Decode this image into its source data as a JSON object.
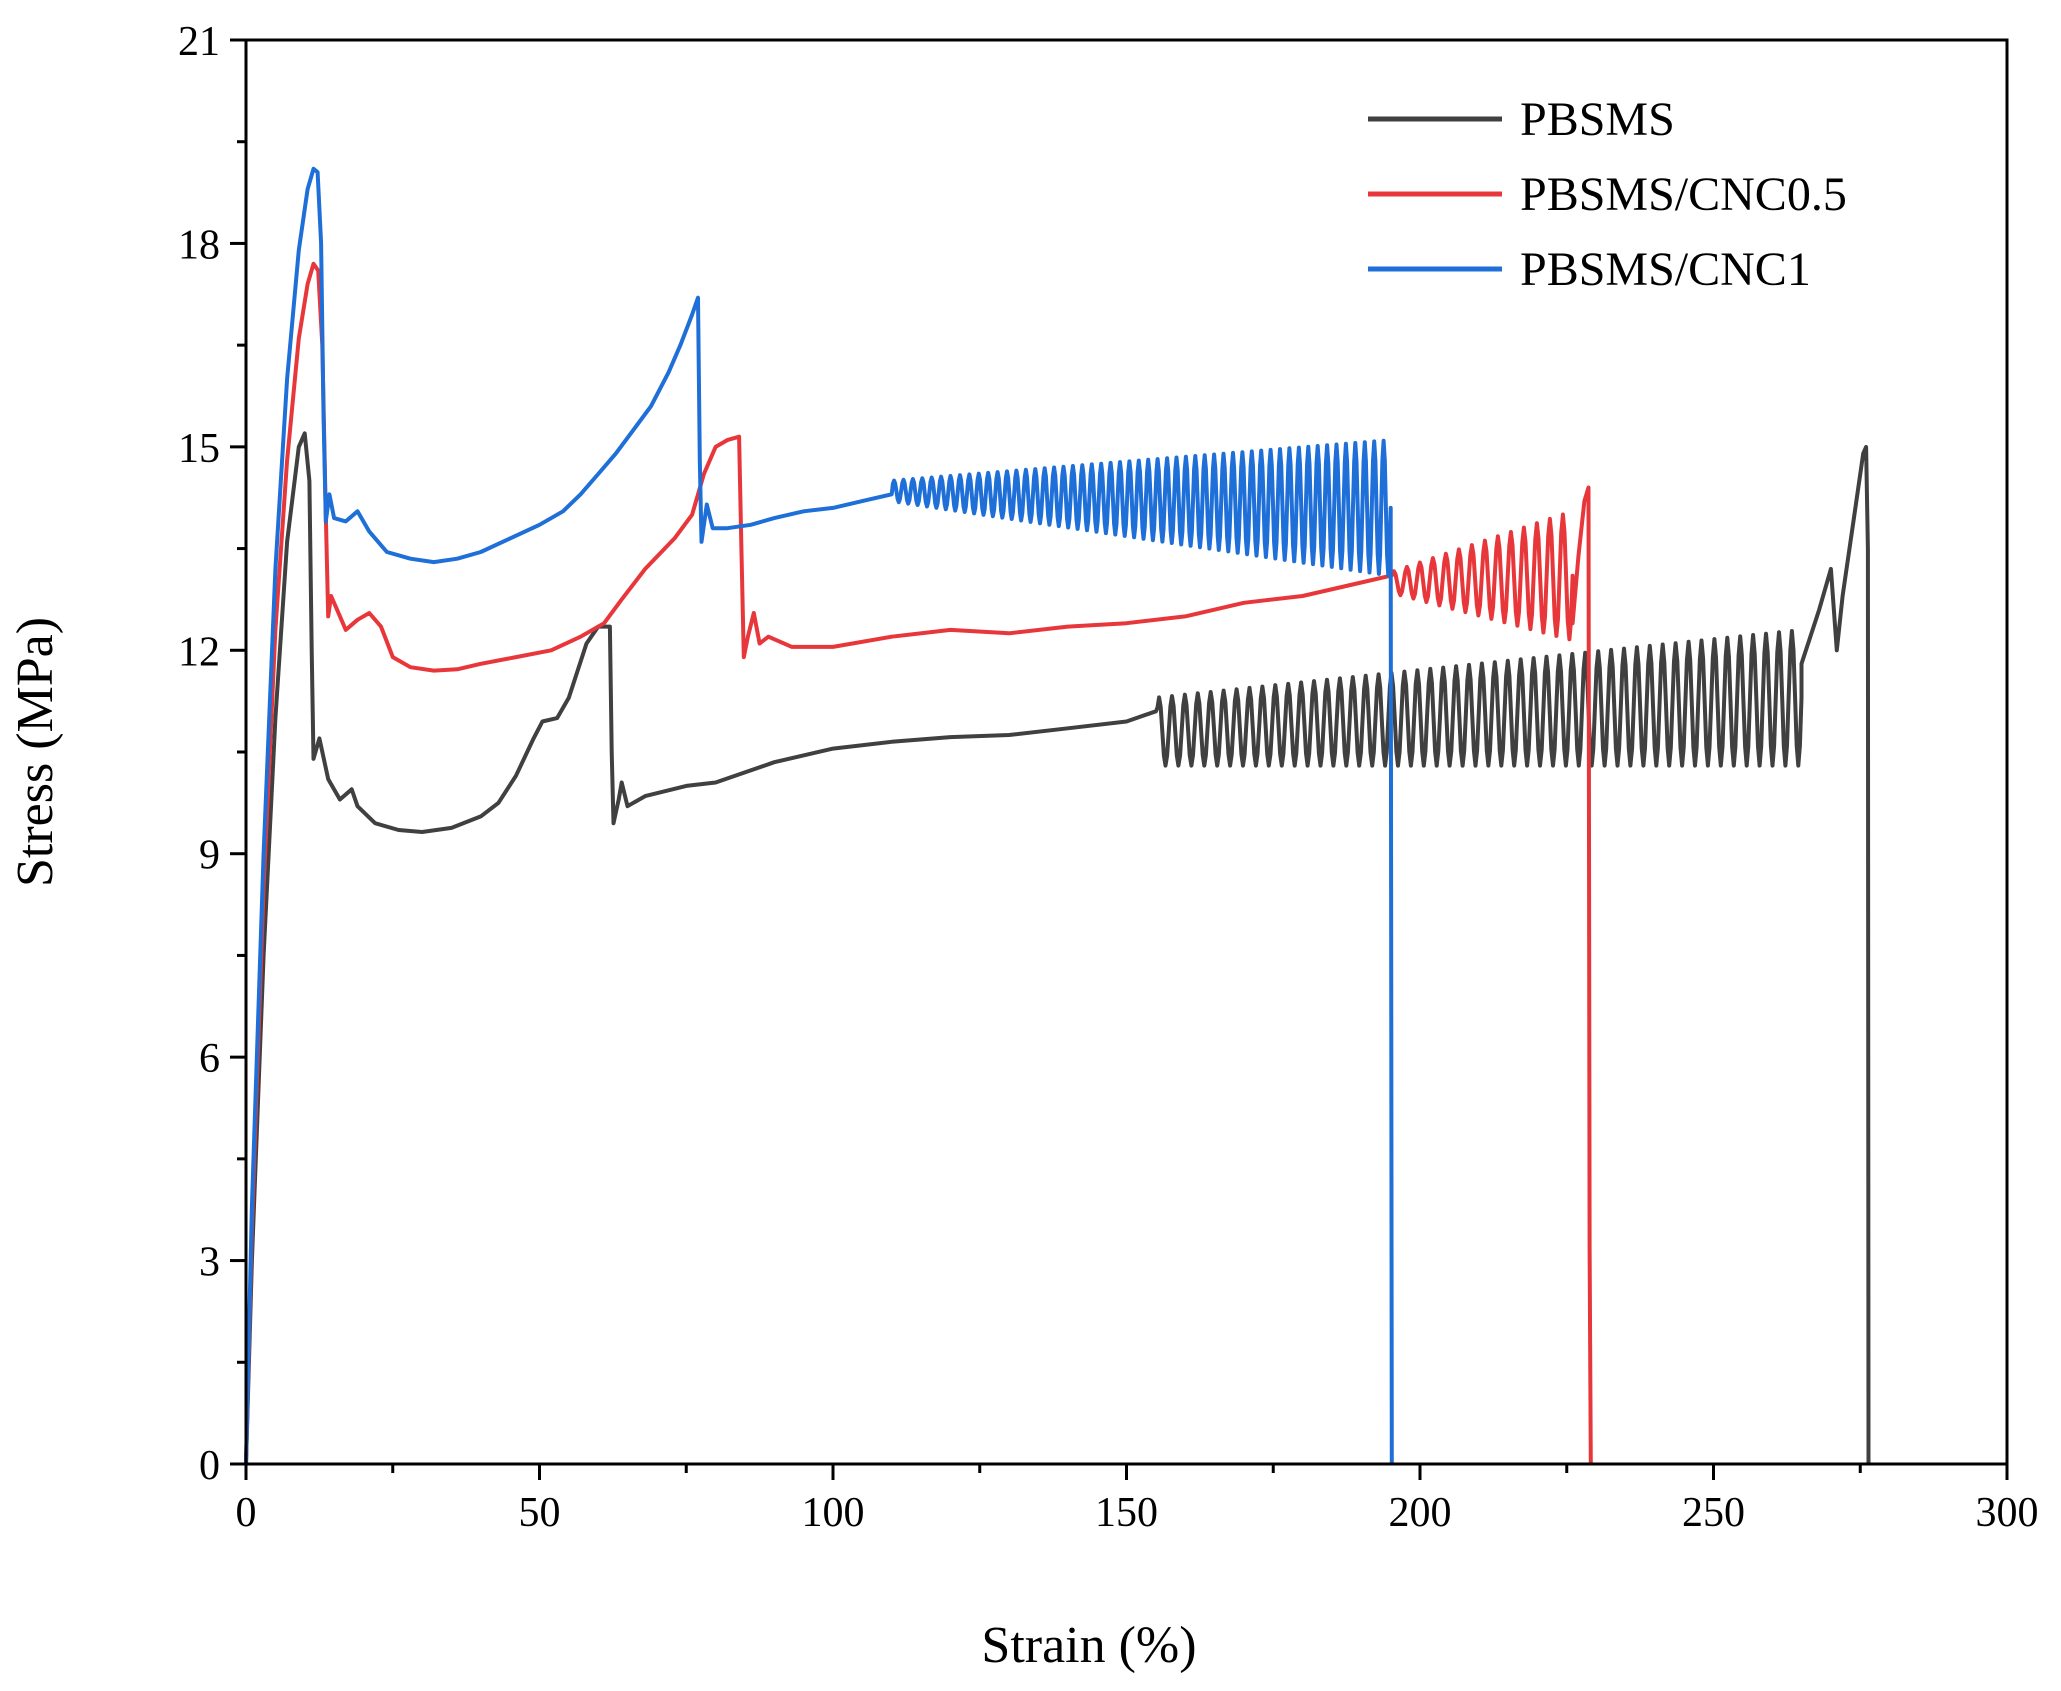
{
  "chart_data": {
    "type": "line",
    "title": "",
    "xlabel": "Strain (%)",
    "ylabel": "Stress (MPa)",
    "xlim": [
      0,
      300
    ],
    "ylim": [
      0,
      21
    ],
    "xticks": [
      0,
      50,
      100,
      150,
      200,
      250,
      300
    ],
    "yticks": [
      0,
      3,
      6,
      9,
      12,
      15,
      18,
      21
    ],
    "xtick_labels": [
      "0",
      "50",
      "100",
      "150",
      "200",
      "250",
      "300"
    ],
    "ytick_labels": [
      "0",
      "3",
      "6",
      "9",
      "12",
      "15",
      "18",
      "21"
    ],
    "grid": false,
    "legend_position": "top-right",
    "series": [
      {
        "name": "PBSMS",
        "color": "#404040",
        "points": [
          [
            0,
            0
          ],
          [
            1,
            3
          ],
          [
            3,
            7.5
          ],
          [
            5,
            11
          ],
          [
            7,
            13.6
          ],
          [
            9,
            15
          ],
          [
            10,
            15.2
          ],
          [
            10.8,
            14.5
          ],
          [
            11.2,
            12
          ],
          [
            11.5,
            10.4
          ],
          [
            12.5,
            10.7
          ],
          [
            14,
            10.1
          ],
          [
            16,
            9.8
          ],
          [
            18,
            9.95
          ],
          [
            19,
            9.7
          ],
          [
            22,
            9.45
          ],
          [
            26,
            9.35
          ],
          [
            30,
            9.32
          ],
          [
            35,
            9.38
          ],
          [
            40,
            9.55
          ],
          [
            43,
            9.75
          ],
          [
            46,
            10.15
          ],
          [
            49,
            10.7
          ],
          [
            50.5,
            10.95
          ],
          [
            53,
            11.0
          ],
          [
            55,
            11.3
          ],
          [
            58,
            12.1
          ],
          [
            60,
            12.35
          ],
          [
            62,
            12.35
          ],
          [
            62.3,
            10.5
          ],
          [
            62.6,
            9.45
          ],
          [
            63.5,
            9.8
          ],
          [
            64,
            10.05
          ],
          [
            65,
            9.7
          ],
          [
            68,
            9.85
          ],
          [
            75,
            10.0
          ],
          [
            80,
            10.05
          ],
          [
            90,
            10.35
          ],
          [
            100,
            10.55
          ],
          [
            110,
            10.65
          ],
          [
            120,
            10.72
          ],
          [
            130,
            10.75
          ],
          [
            140,
            10.85
          ],
          [
            150,
            10.95
          ],
          [
            155,
            11.1
          ]
        ],
        "oscillation": {
          "from": 155,
          "to": 265,
          "period": 2.2,
          "amp_from": 0.5,
          "amp_to": 1.0,
          "center_from": 10.8,
          "center_to": 11.3
        },
        "tail": [
          [
            265,
            11.8
          ],
          [
            268,
            12.6
          ],
          [
            270,
            13.2
          ],
          [
            271,
            12.0
          ],
          [
            272,
            12.8
          ],
          [
            274,
            14.0
          ],
          [
            275.5,
            14.9
          ],
          [
            276,
            15.0
          ],
          [
            276.3,
            13.5
          ],
          [
            276.4,
            0
          ]
        ]
      },
      {
        "name": "PBSMS/CNC0.5",
        "color": "#e8373b",
        "points": [
          [
            0,
            0
          ],
          [
            1,
            3.5
          ],
          [
            3,
            8.5
          ],
          [
            5,
            12.3
          ],
          [
            7,
            14.8
          ],
          [
            9,
            16.6
          ],
          [
            10.5,
            17.4
          ],
          [
            11.5,
            17.7
          ],
          [
            12.3,
            17.6
          ],
          [
            13,
            16.5
          ],
          [
            13.6,
            14
          ],
          [
            14,
            12.5
          ],
          [
            14.5,
            12.8
          ],
          [
            15.5,
            12.6
          ],
          [
            17,
            12.3
          ],
          [
            19,
            12.45
          ],
          [
            21,
            12.55
          ],
          [
            23,
            12.35
          ],
          [
            25,
            11.9
          ],
          [
            28,
            11.75
          ],
          [
            32,
            11.7
          ],
          [
            36,
            11.72
          ],
          [
            40,
            11.8
          ],
          [
            46,
            11.9
          ],
          [
            52,
            12.0
          ],
          [
            57,
            12.2
          ],
          [
            61,
            12.4
          ],
          [
            64,
            12.75
          ],
          [
            68,
            13.2
          ],
          [
            73,
            13.65
          ],
          [
            76,
            14.0
          ],
          [
            78,
            14.6
          ],
          [
            80,
            15.0
          ],
          [
            82,
            15.1
          ],
          [
            84,
            15.15
          ],
          [
            84.4,
            13.5
          ],
          [
            84.8,
            11.9
          ],
          [
            85.5,
            12.2
          ],
          [
            86.5,
            12.55
          ],
          [
            87.5,
            12.1
          ],
          [
            89,
            12.2
          ],
          [
            93,
            12.05
          ],
          [
            100,
            12.05
          ],
          [
            110,
            12.2
          ],
          [
            120,
            12.3
          ],
          [
            130,
            12.25
          ],
          [
            140,
            12.35
          ],
          [
            150,
            12.4
          ],
          [
            160,
            12.5
          ],
          [
            170,
            12.7
          ],
          [
            180,
            12.8
          ],
          [
            190,
            13.0
          ],
          [
            195,
            13.1
          ]
        ],
        "oscillation": {
          "from": 195,
          "to": 226,
          "period": 2.2,
          "amp_from": 0.15,
          "amp_to": 0.95,
          "center_from": 13.0,
          "center_to": 13.1
        },
        "tail": [
          [
            226,
            12.4
          ],
          [
            227,
            13.4
          ],
          [
            228,
            14.2
          ],
          [
            228.7,
            14.4
          ],
          [
            228.9,
            3.2
          ],
          [
            229.1,
            0
          ]
        ]
      },
      {
        "name": "PBSMS/CNC1",
        "color": "#1f6fd8",
        "points": [
          [
            0,
            0
          ],
          [
            1,
            3.8
          ],
          [
            3,
            9
          ],
          [
            5,
            13.2
          ],
          [
            7,
            16
          ],
          [
            9,
            17.9
          ],
          [
            10.5,
            18.8
          ],
          [
            11.5,
            19.1
          ],
          [
            12.2,
            19.05
          ],
          [
            12.8,
            18
          ],
          [
            13.2,
            15.5
          ],
          [
            13.6,
            13.9
          ],
          [
            14.2,
            14.3
          ],
          [
            15,
            13.95
          ],
          [
            17,
            13.9
          ],
          [
            19,
            14.05
          ],
          [
            21,
            13.75
          ],
          [
            24,
            13.45
          ],
          [
            28,
            13.35
          ],
          [
            32,
            13.3
          ],
          [
            36,
            13.35
          ],
          [
            40,
            13.45
          ],
          [
            45,
            13.65
          ],
          [
            50,
            13.85
          ],
          [
            54,
            14.05
          ],
          [
            57,
            14.3
          ],
          [
            60,
            14.6
          ],
          [
            63,
            14.9
          ],
          [
            66,
            15.25
          ],
          [
            69,
            15.6
          ],
          [
            72,
            16.1
          ],
          [
            74,
            16.5
          ],
          [
            76,
            16.95
          ],
          [
            77,
            17.2
          ],
          [
            77.3,
            14.8
          ],
          [
            77.6,
            13.6
          ],
          [
            78.5,
            14.15
          ],
          [
            79.5,
            13.8
          ],
          [
            82,
            13.8
          ],
          [
            86,
            13.85
          ],
          [
            90,
            13.95
          ],
          [
            95,
            14.05
          ],
          [
            100,
            14.1
          ],
          [
            105,
            14.2
          ],
          [
            110,
            14.3
          ]
        ],
        "oscillation": {
          "from": 110,
          "to": 195,
          "period": 1.6,
          "amp_from": 0.15,
          "amp_to": 1.0,
          "center_from": 14.35,
          "center_to": 14.1
        },
        "tail": [
          [
            195,
            13.6
          ],
          [
            195.2,
            0
          ]
        ]
      }
    ]
  }
}
